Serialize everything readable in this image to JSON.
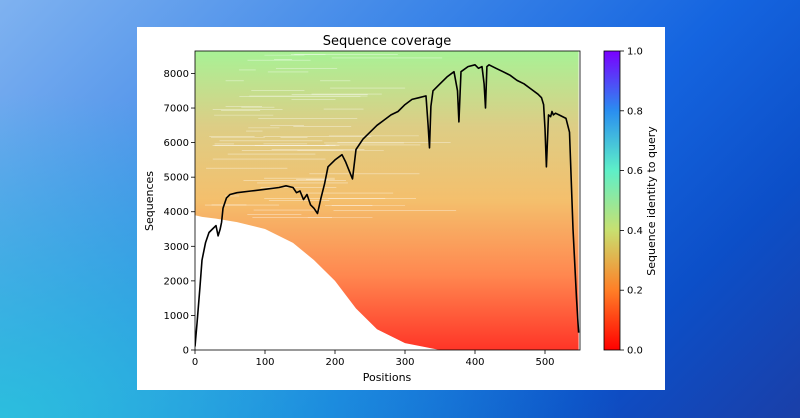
{
  "chart_data": {
    "type": "heatmap",
    "title": "Sequence coverage",
    "xlabel": "Positions",
    "ylabel": "Sequences",
    "xlim": [
      0,
      550
    ],
    "ylim": [
      0,
      8650
    ],
    "x_ticks": [
      0,
      100,
      200,
      300,
      400,
      500
    ],
    "y_ticks": [
      0,
      1000,
      2000,
      3000,
      4000,
      5000,
      6000,
      7000,
      8000
    ],
    "colorbar": {
      "label": "Sequence identity to query",
      "range": [
        0.0,
        1.0
      ],
      "ticks": [
        0.0,
        0.2,
        0.4,
        0.6,
        0.8,
        1.0
      ],
      "colormap": "rainbow"
    },
    "grid": false,
    "coverage_line": {
      "color": "#000000",
      "x": [
        0,
        3,
        7,
        10,
        15,
        20,
        25,
        30,
        33,
        36,
        38,
        40,
        45,
        50,
        60,
        80,
        100,
        120,
        130,
        140,
        145,
        150,
        155,
        160,
        165,
        170,
        175,
        180,
        185,
        190,
        200,
        210,
        215,
        220,
        225,
        230,
        240,
        250,
        260,
        270,
        280,
        290,
        300,
        310,
        320,
        330,
        333,
        335,
        337,
        340,
        350,
        360,
        370,
        375,
        377,
        380,
        390,
        400,
        405,
        410,
        413,
        415,
        417,
        420,
        430,
        440,
        450,
        460,
        470,
        480,
        490,
        495,
        498,
        500,
        502,
        505,
        508,
        510,
        512,
        515,
        520,
        530,
        535,
        540,
        545,
        548
      ],
      "y": [
        100,
        800,
        1800,
        2600,
        3100,
        3400,
        3500,
        3600,
        3300,
        3500,
        3700,
        4100,
        4400,
        4500,
        4550,
        4600,
        4650,
        4700,
        4750,
        4700,
        4550,
        4600,
        4350,
        4500,
        4200,
        4100,
        3950,
        4400,
        4800,
        5300,
        5500,
        5650,
        5450,
        5200,
        4950,
        5800,
        6100,
        6300,
        6500,
        6650,
        6800,
        6900,
        7100,
        7250,
        7300,
        7350,
        6500,
        5850,
        7050,
        7500,
        7700,
        7900,
        8050,
        7500,
        6600,
        8050,
        8200,
        8250,
        8150,
        8200,
        7700,
        7000,
        8200,
        8250,
        8150,
        8050,
        7950,
        7800,
        7700,
        7550,
        7400,
        7300,
        7100,
        6400,
        5300,
        6800,
        6750,
        6900,
        6800,
        6850,
        6800,
        6700,
        6300,
        3500,
        1500,
        500
      ]
    }
  }
}
